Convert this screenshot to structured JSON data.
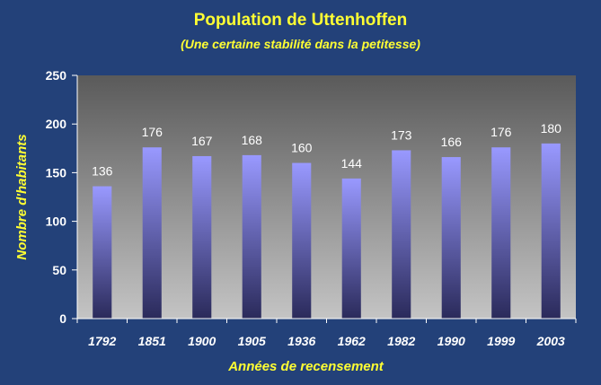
{
  "chart_data": {
    "type": "bar",
    "title": "Population de Uttenhoffen",
    "subtitle": "(Une certaine stabilité dans la petitesse)",
    "xlabel": "Années de recensement",
    "ylabel": "Nombre d'habitants",
    "categories": [
      "1792",
      "1851",
      "1900",
      "1905",
      "1936",
      "1962",
      "1982",
      "1990",
      "1999",
      "2003"
    ],
    "values": [
      136,
      176,
      167,
      168,
      160,
      144,
      173,
      166,
      176,
      180
    ],
    "ylim": [
      0,
      250
    ],
    "yticks": [
      0,
      50,
      100,
      150,
      200,
      250
    ],
    "grid": false,
    "legend": "none",
    "colors": {
      "background": "#234179",
      "plot_top": "#5a5a5a",
      "plot_bottom": "#c4c4c4",
      "bar_top": "#9999ff",
      "bar_bottom": "#2a2a5a",
      "title": "#ffff33",
      "text": "#ffffff"
    }
  }
}
